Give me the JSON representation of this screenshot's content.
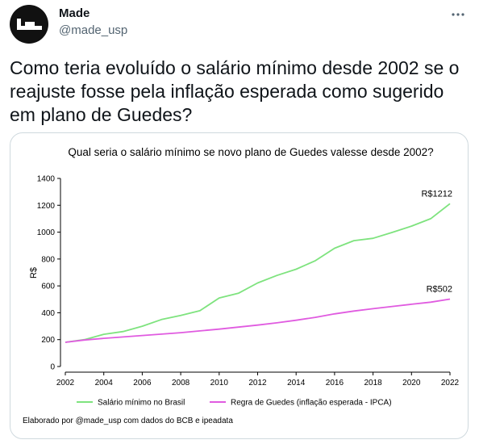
{
  "author": {
    "display_name": "Made",
    "handle": "@made_usp",
    "avatar_icon": "made-logo-icon"
  },
  "more_icon": "more-dots-icon",
  "tweet": {
    "text": "Como teria evoluído o salário mínimo desde 2002 se o reajuste fosse pela inflação esperada como sugerido em plano de Guedes?"
  },
  "colors": {
    "series_brasil": "#7ee37e",
    "series_guedes": "#e05be0",
    "axis": "#000000",
    "card_border": "#cfd9de"
  },
  "chart_data": {
    "type": "line",
    "title": "Qual seria o salário mínimo se novo plano de Guedes valesse desde 2002?",
    "xlabel": "",
    "ylabel": "R$",
    "xlim": [
      2002,
      2022
    ],
    "ylim": [
      0,
      1400
    ],
    "x_ticks": [
      2002,
      2004,
      2006,
      2008,
      2010,
      2012,
      2014,
      2016,
      2018,
      2020,
      2022
    ],
    "y_ticks": [
      0,
      200,
      400,
      600,
      800,
      1000,
      1200,
      1400
    ],
    "grid": false,
    "legend_position": "bottom",
    "x": [
      2002,
      2003,
      2004,
      2005,
      2006,
      2007,
      2008,
      2009,
      2010,
      2011,
      2012,
      2013,
      2014,
      2015,
      2016,
      2017,
      2018,
      2019,
      2020,
      2021,
      2022
    ],
    "series": [
      {
        "name": "Salário mínimo no Brasil",
        "color_key": "series_brasil",
        "values": [
          180,
          200,
          240,
          260,
          300,
          350,
          380,
          415,
          510,
          545,
          622,
          678,
          724,
          788,
          880,
          937,
          954,
          998,
          1045,
          1100,
          1212
        ],
        "end_label": "R$1212"
      },
      {
        "name": "Regra de Guedes (inflação esperada - IPCA)",
        "color_key": "series_guedes",
        "values": [
          180,
          197,
          210,
          220,
          231,
          241,
          252,
          265,
          278,
          293,
          308,
          325,
          344,
          366,
          392,
          413,
          430,
          447,
          463,
          479,
          502
        ],
        "end_label": "R$502"
      }
    ],
    "source_note": "Elaborado por @made_usp com dados do BCB e ipeadata"
  }
}
